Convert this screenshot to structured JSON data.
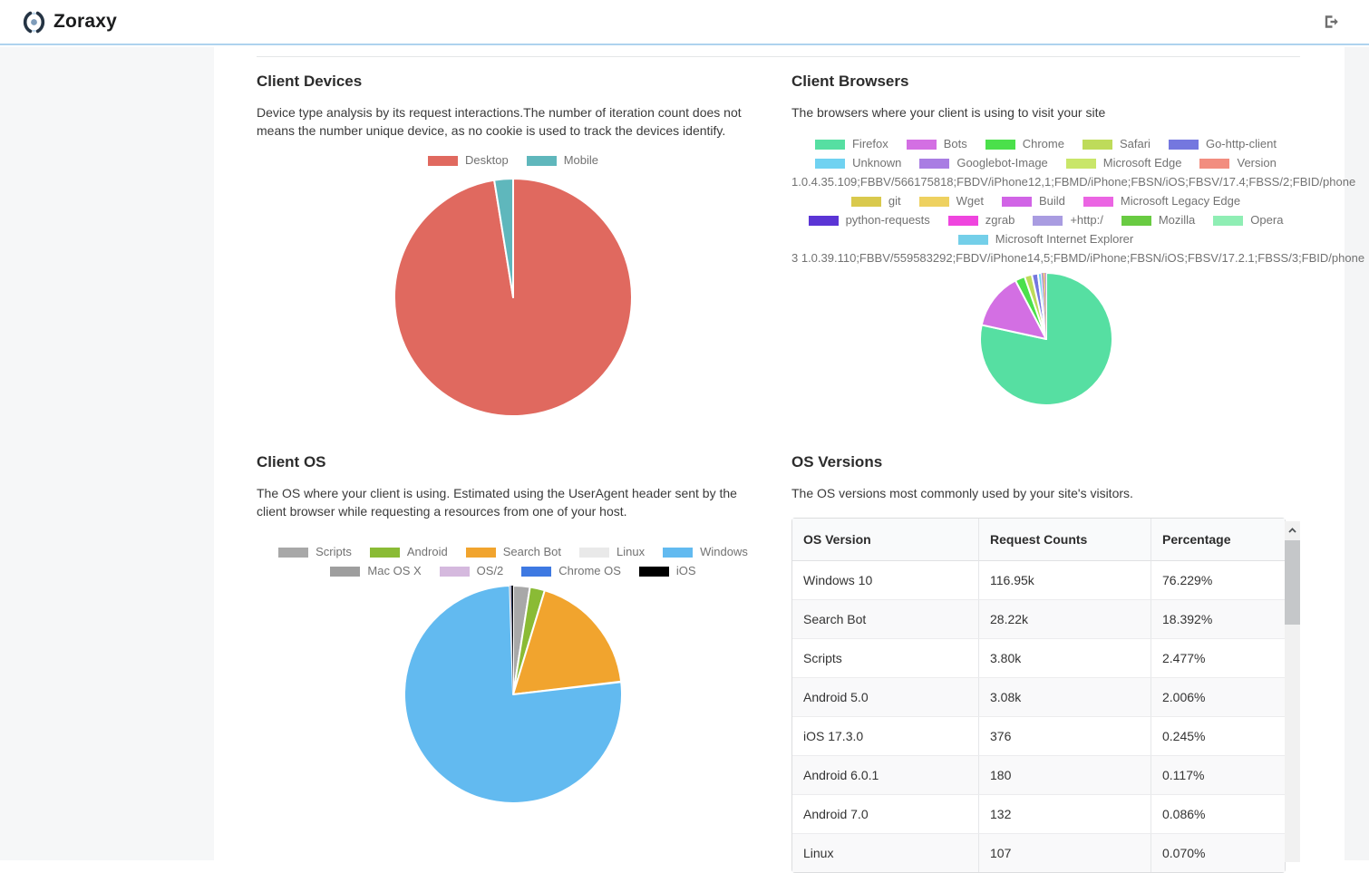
{
  "header": {
    "brand": "Zoraxy"
  },
  "colors": {
    "header_border": "#aed3ee",
    "sidebar_bg": "#f6f7f8",
    "accent_blue": "#62baf0",
    "desktop_red": "#e0695f",
    "mobile_teal": "#5fb7bc"
  },
  "sections": {
    "client_devices": {
      "title": "Client Devices",
      "description": "Device type analysis by its request interactions.The number of iteration count does not means the number unique device, as no cookie is used to track the devices identify."
    },
    "client_browsers": {
      "title": "Client Browsers",
      "description": "The browsers where your client is using to visit your site"
    },
    "client_os": {
      "title": "Client OS",
      "description": "The OS where your client is using. Estimated using the UserAgent header sent by the client browser while requesting a resources from one of your host."
    },
    "os_versions": {
      "title": "OS Versions",
      "description": "The OS versions most commonly used by your site's visitors.",
      "table": {
        "headers": [
          "OS Version",
          "Request Counts",
          "Percentage"
        ],
        "rows": [
          [
            "Windows 10",
            "116.95k",
            "76.229%"
          ],
          [
            "Search Bot",
            "28.22k",
            "18.392%"
          ],
          [
            "Scripts",
            "3.80k",
            "2.477%"
          ],
          [
            "Android 5.0",
            "3.08k",
            "2.006%"
          ],
          [
            "iOS 17.3.0",
            "376",
            "0.245%"
          ],
          [
            "Android 6.0.1",
            "180",
            "0.117%"
          ],
          [
            "Android 7.0",
            "132",
            "0.086%"
          ],
          [
            "Linux",
            "107",
            "0.070%"
          ]
        ]
      }
    }
  },
  "chart_data": [
    {
      "name": "client_devices",
      "type": "pie",
      "title": "Client Devices",
      "legend_position": "top",
      "slices": [
        {
          "label": "Desktop",
          "value": 97.45,
          "color": "#e0695f"
        },
        {
          "label": "Mobile",
          "value": 2.55,
          "color": "#5fb7bc"
        }
      ],
      "legend_rows": [
        [
          "Desktop",
          "Mobile"
        ]
      ]
    },
    {
      "name": "client_browsers",
      "type": "pie",
      "title": "Client Browsers",
      "legend_position": "top",
      "slices": [
        {
          "label": "Firefox",
          "value": 78.6,
          "color": "#56dfa2"
        },
        {
          "label": "Bots",
          "value": 13.9,
          "color": "#d36fe3"
        },
        {
          "label": "Chrome",
          "value": 2.4,
          "color": "#4be04b"
        },
        {
          "label": "Safari",
          "value": 1.8,
          "color": "#bedb5a"
        },
        {
          "label": "Go-http-client",
          "value": 1.5,
          "color": "#7477df"
        },
        {
          "label": "Unknown",
          "value": 0.9,
          "color": "#70d2f1"
        },
        {
          "label": "Googlebot-Image",
          "value": 0.3,
          "color": "#a97de3"
        },
        {
          "label": "Microsoft Edge",
          "value": 0.2,
          "color": "#c9e669"
        },
        {
          "label": "Version",
          "value": 0.15,
          "color": "#f28d7f"
        },
        {
          "label": "git",
          "value": 0.1,
          "color": "#d9c94d"
        },
        {
          "label": "Wget",
          "value": 0.08,
          "color": "#eed160"
        },
        {
          "label": "Build",
          "value": 0.06,
          "color": "#d164e6"
        },
        {
          "label": "Microsoft Legacy Edge",
          "value": 0.05,
          "color": "#eb65e3"
        },
        {
          "label": "python-requests",
          "value": 0.05,
          "color": "#5b35d5"
        },
        {
          "label": "zgrab",
          "value": 0.04,
          "color": "#ef45de"
        },
        {
          "label": "+http:/",
          "value": 0.03,
          "color": "#a99ce1"
        },
        {
          "label": "Mozilla",
          "value": 0.03,
          "color": "#69cb42"
        },
        {
          "label": "Opera",
          "value": 0.02,
          "color": "#8feeb4"
        },
        {
          "label": "Microsoft Internet Explorer",
          "value": 0.02,
          "color": "#74cfe9"
        }
      ],
      "legend_rows": [
        [
          "Firefox",
          "Bots",
          "Chrome",
          "Safari",
          "Go-http-client"
        ],
        [
          "Unknown",
          "Googlebot-Image",
          "Microsoft Edge",
          "Version"
        ],
        [
          "1.0.4.35.109;FBBV/566175818;FBDV/iPhone12,1;FBMD/iPhone;FBSN/iOS;FBSV/17.4;FBSS/2;FBID/phone"
        ],
        [
          "git",
          "Wget",
          "Build",
          "Microsoft Legacy Edge"
        ],
        [
          "python-requests",
          "zgrab",
          "+http:/",
          "Mozilla",
          "Opera"
        ],
        [
          "Microsoft Internet Explorer"
        ],
        [
          "3 1.0.39.110;FBBV/559583292;FBDV/iPhone14,5;FBMD/iPhone;FBSN/iOS;FBSV/17.2.1;FBSS/3;FBID/phone"
        ]
      ]
    },
    {
      "name": "client_os",
      "type": "pie",
      "title": "Client OS",
      "legend_position": "top",
      "slices": [
        {
          "label": "Scripts",
          "value": 2.477,
          "color": "#a8a8a8"
        },
        {
          "label": "Android",
          "value": 2.209,
          "color": "#8abb35"
        },
        {
          "label": "Search Bot",
          "value": 18.392,
          "color": "#f1a42e"
        },
        {
          "label": "Linux",
          "value": 0.07,
          "color": "#e9e9e9"
        },
        {
          "label": "Windows",
          "value": 76.229,
          "color": "#62baf0"
        },
        {
          "label": "Mac OS X",
          "value": 0.12,
          "color": "#9e9e9e"
        },
        {
          "label": "OS/2",
          "value": 0.06,
          "color": "#d5b9de"
        },
        {
          "label": "Chrome OS",
          "value": 0.06,
          "color": "#3e79e2"
        },
        {
          "label": "iOS",
          "value": 0.245,
          "color": "#000000"
        }
      ],
      "legend_rows": [
        [
          "Scripts",
          "Android",
          "Search Bot",
          "Linux",
          "Windows"
        ],
        [
          "Mac OS X",
          "OS/2",
          "Chrome OS",
          "iOS"
        ]
      ]
    }
  ]
}
